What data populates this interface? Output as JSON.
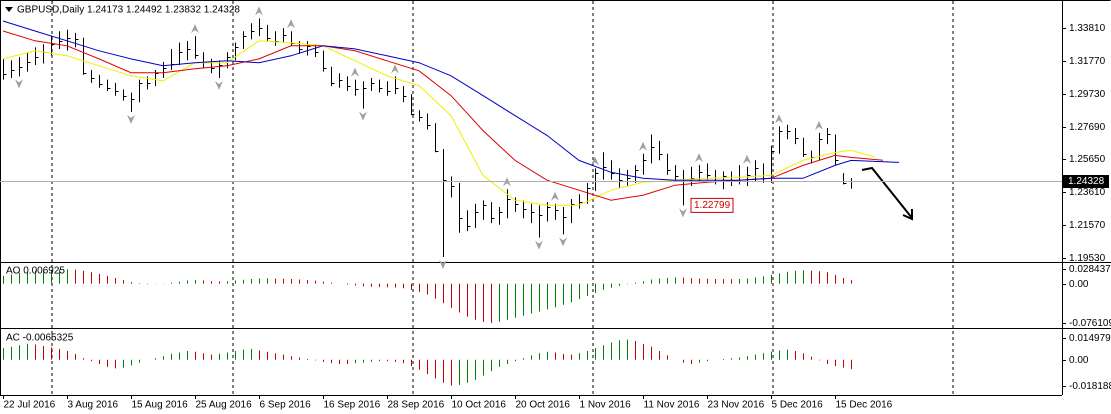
{
  "chart_data": [
    {
      "type": "ohlc",
      "title": "GBPUSD,Daily  1.24173 1.24492 1.23832 1.24328",
      "xlim": [
        -0.375,
        132.375
      ],
      "xticks": [
        {
          "value": 0,
          "label": "22 Jul 2016"
        },
        {
          "value": 8,
          "label": "3 Aug 2016"
        },
        {
          "value": 16,
          "label": "15 Aug 2016"
        },
        {
          "value": 24,
          "label": "25 Aug 2016"
        },
        {
          "value": 32,
          "label": "6 Sep 2016"
        },
        {
          "value": 40,
          "label": "16 Sep 2016"
        },
        {
          "value": 48,
          "label": "28 Sep 2016"
        },
        {
          "value": 56,
          "label": "10 Oct 2016"
        },
        {
          "value": 64,
          "label": "20 Oct 2016"
        },
        {
          "value": 72,
          "label": "1 Nov 2016"
        },
        {
          "value": 80,
          "label": "11 Nov 2016"
        },
        {
          "value": 88,
          "label": "23 Nov 2016"
        },
        {
          "value": 96,
          "label": "5 Dec 2016"
        },
        {
          "value": 104,
          "label": "15 Dec 2016"
        }
      ],
      "ylim": [
        1.1935,
        1.3548
      ],
      "yticks": [
        {
          "value": 1.3381,
          "label": "1.33810"
        },
        {
          "value": 1.3177,
          "label": "1.31770"
        },
        {
          "value": 1.2973,
          "label": "1.29730"
        },
        {
          "value": 1.2769,
          "label": "1.27690"
        },
        {
          "value": 1.2565,
          "label": "1.25650"
        },
        {
          "value": 1.2361,
          "label": "1.23610"
        },
        {
          "value": 1.2157,
          "label": "1.21570"
        },
        {
          "value": 1.1953,
          "label": "1.19530"
        }
      ],
      "color": "#000000",
      "high": [
        1.319,
        1.318,
        1.32,
        1.323,
        1.326,
        1.328,
        1.333,
        1.336,
        1.337,
        1.335,
        1.332,
        1.312,
        1.309,
        1.306,
        1.304,
        1.3,
        1.298,
        1.306,
        1.308,
        1.312,
        1.317,
        1.325,
        1.329,
        1.33,
        1.333,
        1.323,
        1.319,
        1.318,
        1.323,
        1.329,
        1.336,
        1.341,
        1.344,
        1.34,
        1.336,
        1.338,
        1.336,
        1.33,
        1.33,
        1.328,
        1.324,
        1.314,
        1.31,
        1.308,
        1.306,
        1.305,
        1.307,
        1.306,
        1.305,
        1.308,
        1.302,
        1.297,
        1.287,
        1.285,
        1.279,
        1.263,
        1.246,
        1.242,
        1.225,
        1.229,
        1.231,
        1.23,
        1.227,
        1.238,
        1.233,
        1.231,
        1.229,
        1.228,
        1.23,
        1.229,
        1.227,
        1.232,
        1.235,
        1.242,
        1.251,
        1.261,
        1.256,
        1.251,
        1.25,
        1.253,
        1.26,
        1.272,
        1.268,
        1.26,
        1.253,
        1.25,
        1.252,
        1.253,
        1.254,
        1.25,
        1.249,
        1.249,
        1.253,
        1.252,
        1.256,
        1.254,
        1.265,
        1.277,
        1.278,
        1.276,
        1.27,
        1.262,
        1.273,
        1.276,
        1.272,
        1.248,
        1.24492
      ],
      "low": [
        1.306,
        1.307,
        1.308,
        1.311,
        1.315,
        1.316,
        1.321,
        1.325,
        1.324,
        1.326,
        1.309,
        1.304,
        1.301,
        1.299,
        1.296,
        1.293,
        1.286,
        1.292,
        1.3,
        1.302,
        1.307,
        1.312,
        1.315,
        1.318,
        1.319,
        1.313,
        1.31,
        1.307,
        1.313,
        1.318,
        1.325,
        1.331,
        1.333,
        1.33,
        1.327,
        1.329,
        1.327,
        1.322,
        1.321,
        1.32,
        1.311,
        1.302,
        1.301,
        1.299,
        1.296,
        1.288,
        1.299,
        1.298,
        1.296,
        1.297,
        1.292,
        1.284,
        1.28,
        1.275,
        1.261,
        1.196,
        1.233,
        1.211,
        1.212,
        1.214,
        1.219,
        1.217,
        1.216,
        1.22,
        1.224,
        1.22,
        1.217,
        1.208,
        1.218,
        1.219,
        1.21,
        1.217,
        1.226,
        1.229,
        1.237,
        1.244,
        1.244,
        1.239,
        1.24,
        1.242,
        1.247,
        1.254,
        1.256,
        1.247,
        1.243,
        1.228,
        1.24,
        1.243,
        1.244,
        1.241,
        1.238,
        1.24,
        1.241,
        1.24,
        1.243,
        1.242,
        1.242,
        1.26,
        1.269,
        1.266,
        1.258,
        1.254,
        1.256,
        1.266,
        1.253,
        1.241,
        1.23832
      ],
      "close": [
        1.3095,
        1.312,
        1.314,
        1.317,
        1.32,
        1.323,
        1.328,
        1.33,
        1.332,
        1.331,
        1.31,
        1.307,
        1.303,
        1.301,
        1.299,
        1.296,
        1.294,
        1.304,
        1.304,
        1.31,
        1.313,
        1.316,
        1.323,
        1.325,
        1.321,
        1.317,
        1.313,
        1.315,
        1.32,
        1.326,
        1.333,
        1.336,
        1.338,
        1.332,
        1.33,
        1.334,
        1.329,
        1.325,
        1.327,
        1.323,
        1.313,
        1.304,
        1.306,
        1.302,
        1.3,
        1.301,
        1.304,
        1.301,
        1.299,
        1.301,
        1.296,
        1.285,
        1.283,
        1.278,
        1.262,
        1.244,
        1.24,
        1.22,
        1.215,
        1.224,
        1.228,
        1.22,
        1.224,
        1.232,
        1.229,
        1.226,
        1.224,
        1.222,
        1.227,
        1.225,
        1.221,
        1.229,
        1.23,
        1.239,
        1.248,
        1.252,
        1.248,
        1.244,
        1.245,
        1.25,
        1.256,
        1.264,
        1.26,
        1.25,
        1.246,
        1.243,
        1.245,
        1.249,
        1.247,
        1.243,
        1.246,
        1.244,
        1.243,
        1.247,
        1.251,
        1.245,
        1.262,
        1.274,
        1.274,
        1.27,
        1.26,
        1.258,
        1.269,
        1.272,
        1.256,
        1.242,
        1.24328
      ],
      "fractals_up": [
        24,
        32,
        36,
        44,
        49,
        63,
        69,
        74,
        80,
        87,
        93,
        97,
        102
      ],
      "fractals_down": [
        2,
        16,
        27,
        45,
        55,
        67,
        70,
        85
      ],
      "fractal_color": "#a0a0a0",
      "moving_averages": [
        {
          "color": "#f0f000",
          "x": [
            0,
            4,
            8,
            12,
            16,
            20,
            24,
            28,
            32,
            36,
            40,
            44,
            48,
            52,
            56,
            60,
            64,
            68,
            72,
            76,
            80,
            84,
            88,
            92,
            96,
            100,
            104,
            106,
            109
          ],
          "values": [
            1.3189,
            1.3239,
            1.3208,
            1.3146,
            1.3084,
            1.3053,
            1.3165,
            1.3165,
            1.3301,
            1.3288,
            1.327,
            1.3177,
            1.3084,
            1.3023,
            1.2837,
            1.2466,
            1.2312,
            1.2281,
            1.2281,
            1.2374,
            1.2423,
            1.2436,
            1.2448,
            1.2454,
            1.2466,
            1.2559,
            1.2608,
            1.2621,
            1.258
          ]
        },
        {
          "color": "#e00000",
          "x": [
            0,
            4,
            8,
            12,
            16,
            20,
            24,
            28,
            32,
            36,
            40,
            44,
            48,
            52,
            56,
            60,
            64,
            68,
            72,
            76,
            80,
            84,
            88,
            92,
            96,
            100,
            104,
            106,
            110
          ],
          "values": [
            1.3362,
            1.3301,
            1.327,
            1.3189,
            1.3103,
            1.3103,
            1.3128,
            1.3146,
            1.3189,
            1.327,
            1.327,
            1.3239,
            1.3177,
            1.3115,
            1.2961,
            1.2744,
            1.2559,
            1.2436,
            1.2374,
            1.2312,
            1.2343,
            1.2405,
            1.2423,
            1.2436,
            1.2448,
            1.2528,
            1.259,
            1.2578,
            1.256
          ]
        },
        {
          "color": "#0000c8",
          "x": [
            0,
            4,
            8,
            12,
            16,
            20,
            24,
            28,
            32,
            36,
            40,
            44,
            48,
            52,
            56,
            60,
            64,
            68,
            72,
            76,
            80,
            84,
            88,
            92,
            96,
            100,
            104,
            106,
            112
          ],
          "values": [
            1.3424,
            1.3362,
            1.3301,
            1.3239,
            1.3189,
            1.3146,
            1.3165,
            1.3177,
            1.3165,
            1.3208,
            1.327,
            1.3251,
            1.3208,
            1.3165,
            1.3084,
            1.2961,
            1.2837,
            1.2714,
            1.2559,
            1.2485,
            1.2448,
            1.2436,
            1.2436,
            1.2436,
            1.2448,
            1.2448,
            1.2528,
            1.2559,
            1.2547
          ]
        }
      ],
      "last_price": 1.24328,
      "annotation": {
        "value": 1.22799,
        "bar": 85,
        "color": "#d00000"
      }
    },
    {
      "type": "oscillator",
      "title": "AO 0.006925",
      "ylim": [
        -0.084,
        0.04
      ],
      "yticks": [
        0.028437,
        {
          "value": 0,
          "label": "0.00"
        },
        -0.076109
      ],
      "up_color": "#008000",
      "down_color": "#c00000",
      "values": [
        0.015,
        0.018,
        0.021,
        0.023,
        0.025,
        0.026,
        0.027,
        0.0275,
        0.028,
        0.027,
        0.025,
        0.022,
        0.019,
        0.015,
        0.011,
        0.007,
        0.003,
        0.001,
        -0.001,
        -0.0005,
        0.0005,
        0.002,
        0.004,
        0.006,
        0.007,
        0.006,
        0.005,
        0.0045,
        0.005,
        0.006,
        0.0075,
        0.009,
        0.01,
        0.0105,
        0.01,
        0.0095,
        0.009,
        0.008,
        0.007,
        0.0055,
        0.004,
        0.002,
        0.0,
        -0.002,
        -0.0035,
        -0.005,
        -0.006,
        -0.0065,
        -0.007,
        -0.0075,
        -0.009,
        -0.012,
        -0.016,
        -0.021,
        -0.029,
        -0.038,
        -0.047,
        -0.056,
        -0.064,
        -0.07,
        -0.074,
        -0.076,
        -0.074,
        -0.07,
        -0.066,
        -0.062,
        -0.058,
        -0.054,
        -0.05,
        -0.046,
        -0.041,
        -0.036,
        -0.03,
        -0.024,
        -0.018,
        -0.012,
        -0.008,
        -0.004,
        -0.001,
        0.002,
        0.005,
        0.008,
        0.01,
        0.011,
        0.012,
        0.0115,
        0.0105,
        0.01,
        0.0095,
        0.009,
        0.0088,
        0.0085,
        0.009,
        0.01,
        0.012,
        0.014,
        0.017,
        0.02,
        0.023,
        0.025,
        0.026,
        0.0255,
        0.024,
        0.022,
        0.017,
        0.011,
        0.006925
      ]
    },
    {
      "type": "oscillator",
      "title": "AC -0.0065325",
      "ylim": [
        -0.0238,
        0.0206
      ],
      "yticks": [
        0.014979,
        {
          "value": 0,
          "label": "0.00"
        },
        -0.018188
      ],
      "up_color": "#008000",
      "down_color": "#c00000",
      "values": [
        0.008,
        0.009,
        0.01,
        0.011,
        0.0105,
        0.0095,
        0.0085,
        0.0075,
        0.006,
        0.004,
        0.001,
        -0.001,
        -0.003,
        -0.005,
        -0.006,
        -0.0055,
        -0.004,
        -0.002,
        0.0,
        0.001,
        0.0025,
        0.004,
        0.005,
        0.006,
        0.0055,
        0.0045,
        0.0035,
        0.004,
        0.005,
        0.006,
        0.007,
        0.0075,
        0.0065,
        0.0055,
        0.0045,
        0.0035,
        0.0025,
        0.0015,
        0.0005,
        -0.0005,
        -0.0015,
        -0.0025,
        -0.003,
        -0.003,
        -0.0025,
        -0.002,
        -0.0015,
        -0.001,
        -0.001,
        -0.0015,
        -0.0025,
        -0.0045,
        -0.007,
        -0.01,
        -0.013,
        -0.016,
        -0.018,
        -0.0175,
        -0.016,
        -0.014,
        -0.011,
        -0.008,
        -0.005,
        -0.003,
        -0.001,
        0.001,
        0.003,
        0.0045,
        0.0055,
        0.005,
        0.004,
        0.0035,
        0.0045,
        0.006,
        0.008,
        0.01,
        0.012,
        0.0135,
        0.014,
        0.013,
        0.011,
        0.009,
        0.006,
        0.003,
        0.0,
        -0.002,
        -0.003,
        -0.002,
        -0.001,
        0.0,
        0.0005,
        0.001,
        0.0015,
        0.0025,
        0.0035,
        0.0045,
        0.0055,
        0.0065,
        0.007,
        0.006,
        0.0045,
        0.002,
        -0.0005,
        -0.003,
        -0.0045,
        -0.0055,
        -0.0065325
      ]
    }
  ]
}
